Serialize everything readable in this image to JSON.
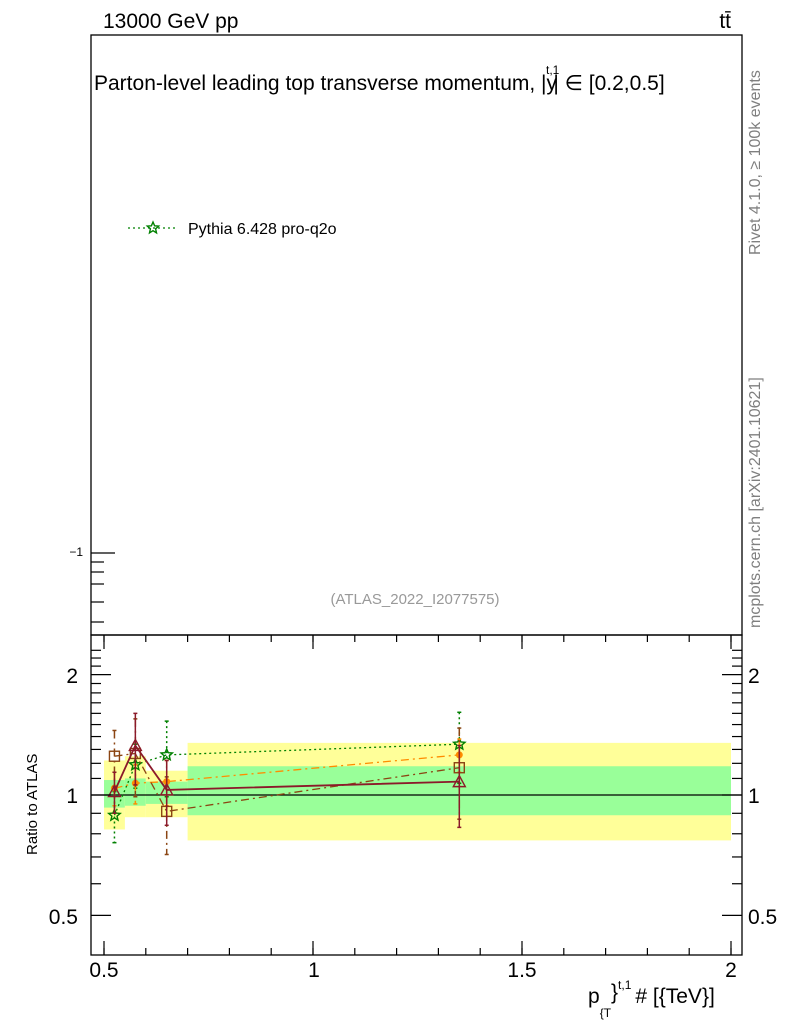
{
  "header": {
    "energy_label": "13000 GeV pp",
    "process_label": "tt̄"
  },
  "main": {
    "title": "Parton-level leading top transverse momentum, |y",
    "title_sup": "t,1",
    "title_tail": "| ∈ [0.2,0.5]",
    "analysis_ref": "(ATLAS_2022_I2077575)",
    "yaxis_tick_label": "−1",
    "legend": [
      {
        "label": "Pythia 6.428 pro-q2o",
        "color": "#008000",
        "marker": "star-icon",
        "style": "dotted"
      }
    ]
  },
  "side": {
    "rivet_label": "Rivet 4.1.0, ≥ 100k events",
    "mcplots_label": "mcplots.cern.ch [arXiv:2401.10621]"
  },
  "ratio": {
    "ylabel": "Ratio to ATLAS",
    "ytick_labels": [
      "2",
      "1",
      "0.5"
    ],
    "xtick_labels": [
      "0.5",
      "1",
      "1.5",
      "2"
    ],
    "xlabel_main": "p",
    "xlabel_sub": "{T",
    "xlabel_sup": "}",
    "xlabel_sup2": "t,1",
    "xlabel_tail": "# [{TeV}]"
  },
  "chart_data": {
    "type": "line",
    "xlabel": "p_{T}^{t,1} # [{TeV}]",
    "ylabel": "Ratio to ATLAS",
    "xlim": [
      0.5,
      2.05
    ],
    "ratio_ylim": [
      0.4,
      2.4
    ],
    "ratio_yscale": "log",
    "reference": 1.0,
    "bands": [
      {
        "x": [
          0.5,
          0.55
        ],
        "green": [
          0.93,
          1.09
        ],
        "yellow": [
          0.82,
          1.22
        ]
      },
      {
        "x": [
          0.55,
          0.6
        ],
        "green": [
          0.94,
          1.1
        ],
        "yellow": [
          0.88,
          1.25
        ]
      },
      {
        "x": [
          0.6,
          0.7
        ],
        "green": [
          0.95,
          1.08
        ],
        "yellow": [
          0.88,
          1.15
        ]
      },
      {
        "x": [
          0.7,
          2.0
        ],
        "green": [
          0.89,
          1.18
        ],
        "yellow": [
          0.77,
          1.35
        ]
      }
    ],
    "series": [
      {
        "name": "Pythia 6.428 pro-q2o",
        "color": "#008000",
        "dash": "2,3",
        "marker": "star",
        "x": [
          0.525,
          0.575,
          0.65,
          1.35
        ],
        "y": [
          0.89,
          1.19,
          1.26,
          1.34
        ],
        "err": [
          0.13,
          0.15,
          0.27,
          0.27
        ]
      },
      {
        "name": "orange dash-dot",
        "color": "#ff8c00",
        "dash": "8,4,2,4",
        "marker": "circle",
        "x": [
          0.525,
          0.575,
          0.65,
          1.35
        ],
        "y": [
          1.04,
          1.07,
          1.08,
          1.26
        ],
        "err": [
          0.1,
          0.12,
          0.14,
          0.12
        ]
      },
      {
        "name": "brown dash-dot",
        "color": "#8b4513",
        "dash": "8,4,2,4",
        "marker": "open-square",
        "x": [
          0.525,
          0.575,
          0.65,
          1.35
        ],
        "y": [
          1.25,
          1.27,
          0.91,
          1.17
        ],
        "err": [
          0.2,
          0.28,
          0.2,
          0.3
        ]
      },
      {
        "name": "dark red solid",
        "color": "#8b1a2a",
        "dash": "",
        "marker": "open-triangle",
        "x": [
          0.525,
          0.575,
          0.65,
          1.35
        ],
        "y": [
          1.02,
          1.33,
          1.03,
          1.08
        ],
        "err": [
          0.12,
          0.27,
          0.19,
          0.25
        ]
      }
    ]
  }
}
